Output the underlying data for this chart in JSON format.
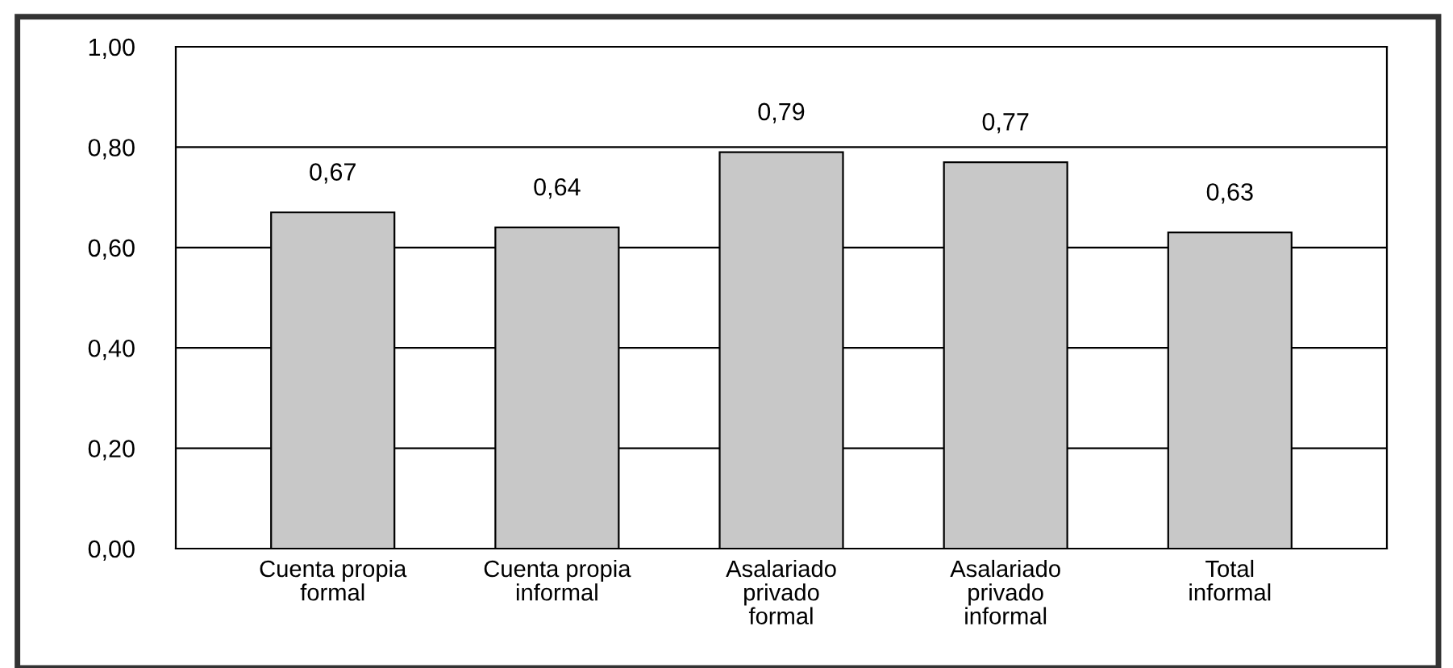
{
  "chart_data": {
    "type": "bar",
    "categories": [
      "Cuenta propia\nformal",
      "Cuenta propia\ninformal",
      "Asalariado\nprivado\nformal",
      "Asalariado\nprivado\ninformal",
      "Total\ninformal"
    ],
    "values": [
      0.67,
      0.64,
      0.79,
      0.77,
      0.63
    ],
    "value_labels": [
      "0,67",
      "0,64",
      "0,79",
      "0,77",
      "0,63"
    ],
    "color": "#c8c8c8",
    "ylim": [
      0,
      1
    ],
    "yticks": [
      {
        "value": 0,
        "label": "0,00"
      },
      {
        "value": 0.2,
        "label": "0,20"
      },
      {
        "value": 0.4,
        "label": "0,40"
      },
      {
        "value": 0.6,
        "label": "0,60"
      },
      {
        "value": 0.8,
        "label": "0,80"
      },
      {
        "value": 1,
        "label": "1,00"
      }
    ],
    "grid": "y"
  }
}
